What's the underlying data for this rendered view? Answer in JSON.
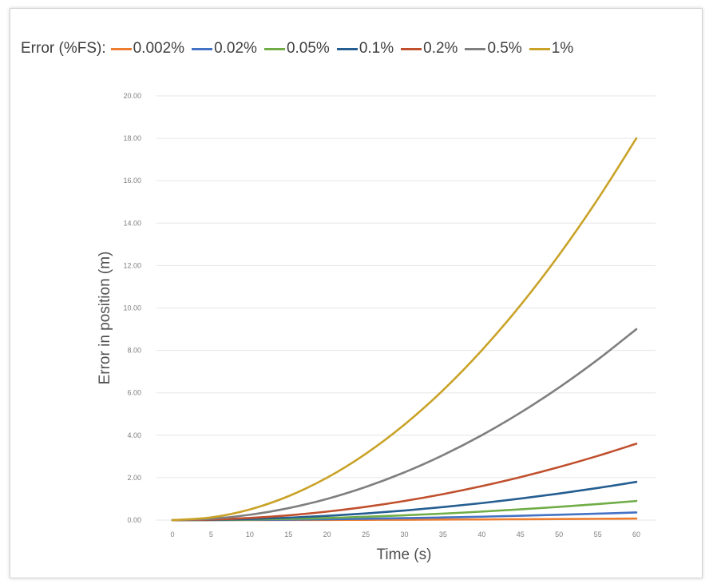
{
  "chart_data": {
    "type": "line",
    "title": "",
    "legend_title": "Error (%FS):",
    "legend_placement": "top",
    "xlabel": "Time (s)",
    "ylabel": "Error in position (m)",
    "xlim": [
      0,
      60
    ],
    "ylim": [
      0,
      20
    ],
    "grid": true,
    "x_ticks": [
      "0",
      "5",
      "10",
      "15",
      "20",
      "25",
      "30",
      "35",
      "40",
      "45",
      "50",
      "55",
      "60"
    ],
    "y_ticks": [
      "0.00",
      "2.00",
      "4.00",
      "6.00",
      "8.00",
      "10.00",
      "12.00",
      "14.00",
      "16.00",
      "18.00",
      "20.00"
    ],
    "x": [
      0,
      5,
      10,
      15,
      20,
      25,
      30,
      35,
      40,
      45,
      50,
      55,
      60
    ],
    "series": [
      {
        "name": "0.002%",
        "color": "#ed7d31",
        "values": [
          0,
          0.001,
          0.002,
          0.005,
          0.008,
          0.013,
          0.018,
          0.025,
          0.032,
          0.041,
          0.05,
          0.061,
          0.072
        ]
      },
      {
        "name": "0.02%",
        "color": "#4472c4",
        "values": [
          0,
          0.002,
          0.01,
          0.023,
          0.04,
          0.063,
          0.09,
          0.123,
          0.16,
          0.203,
          0.25,
          0.303,
          0.36
        ]
      },
      {
        "name": "0.05%",
        "color": "#70ad47",
        "values": [
          0,
          0.006,
          0.025,
          0.056,
          0.1,
          0.156,
          0.225,
          0.306,
          0.4,
          0.506,
          0.625,
          0.756,
          0.9
        ]
      },
      {
        "name": "0.1%",
        "color": "#255e91",
        "values": [
          0,
          0.012,
          0.05,
          0.113,
          0.2,
          0.313,
          0.45,
          0.613,
          0.8,
          1.013,
          1.25,
          1.513,
          1.8
        ]
      },
      {
        "name": "0.2%",
        "color": "#c0502e",
        "values": [
          0,
          0.025,
          0.1,
          0.225,
          0.4,
          0.625,
          0.9,
          1.225,
          1.6,
          2.025,
          2.5,
          3.025,
          3.6
        ]
      },
      {
        "name": "0.5%",
        "color": "#7f7f7f",
        "values": [
          0,
          0.063,
          0.25,
          0.563,
          1.0,
          1.563,
          2.25,
          3.063,
          4.0,
          5.063,
          6.25,
          7.563,
          9.0
        ]
      },
      {
        "name": "1%",
        "color": "#c9a227",
        "values": [
          0,
          0.125,
          0.5,
          1.125,
          2.0,
          3.125,
          4.5,
          6.125,
          8.0,
          10.125,
          12.5,
          15.125,
          18.0
        ]
      }
    ]
  }
}
